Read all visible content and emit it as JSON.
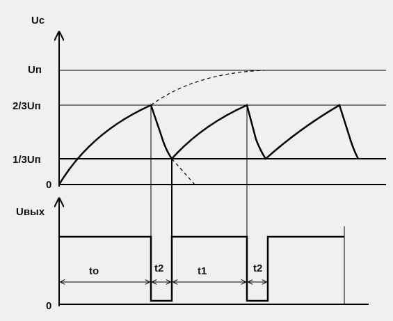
{
  "top_axis": {
    "label": "Uc",
    "levels": [
      "Uп",
      "2/3Uп",
      "1/3Uп",
      "0"
    ]
  },
  "bottom_axis": {
    "label": "Uвых",
    "zero": "0"
  },
  "intervals": [
    "tо",
    "t2",
    "t1",
    "t2"
  ]
}
